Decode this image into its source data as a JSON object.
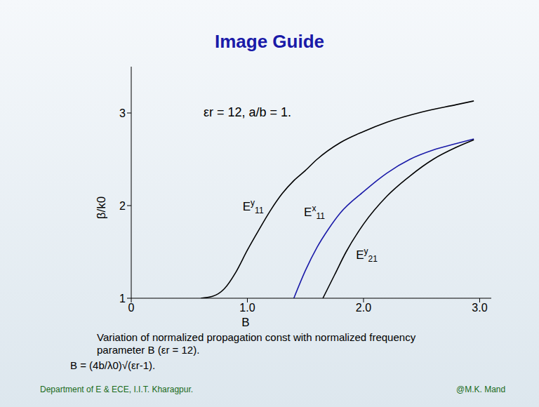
{
  "chart_data": {
    "type": "line",
    "title": "Image Guide",
    "x_label": "B",
    "y_label": "β/k0",
    "annotation": "εr = 12, a/b = 1.",
    "caption": "Variation of normalized propagation const with normalized frequency parameter B (εr = 12).",
    "equation": "B = (4b/λ0)√(εr-1).",
    "xlim": [
      0,
      3.1
    ],
    "xticks": [
      0,
      {
        "value": 1,
        "label": "1.0"
      },
      {
        "value": 2,
        "label": "2.0"
      },
      {
        "value": 3,
        "label": "3.0"
      }
    ],
    "ylim": [
      1,
      3.5
    ],
    "yticks": [
      1,
      2,
      3
    ],
    "grid": false,
    "series": [
      {
        "name": "Ey11",
        "color": "#000000",
        "x": [
          0.6,
          0.7,
          0.8,
          0.9,
          1.0,
          1.1,
          1.2,
          1.3,
          1.4,
          1.5,
          1.6,
          1.8,
          2.0,
          2.2,
          2.5,
          2.8,
          2.95
        ],
        "values": [
          1.0,
          1.02,
          1.1,
          1.28,
          1.52,
          1.74,
          1.95,
          2.13,
          2.27,
          2.38,
          2.5,
          2.68,
          2.8,
          2.9,
          3.01,
          3.09,
          3.13
        ]
      },
      {
        "name": "Ex11",
        "color": "#1a1aa8",
        "x": [
          1.4,
          1.5,
          1.6,
          1.7,
          1.8,
          2.0,
          2.2,
          2.4,
          2.6,
          2.8,
          2.95
        ],
        "values": [
          1.0,
          1.3,
          1.55,
          1.75,
          1.92,
          2.15,
          2.35,
          2.5,
          2.6,
          2.67,
          2.72
        ]
      },
      {
        "name": "Ey21",
        "color": "#000000",
        "x": [
          1.65,
          1.75,
          1.85,
          2.0,
          2.2,
          2.4,
          2.6,
          2.8,
          2.95
        ],
        "values": [
          1.0,
          1.25,
          1.5,
          1.8,
          2.1,
          2.32,
          2.5,
          2.63,
          2.71
        ]
      }
    ]
  },
  "footer": {
    "left": "Department of E & ECE, I.I.T. Kharagpur.",
    "right": "@M.K. Mand"
  }
}
